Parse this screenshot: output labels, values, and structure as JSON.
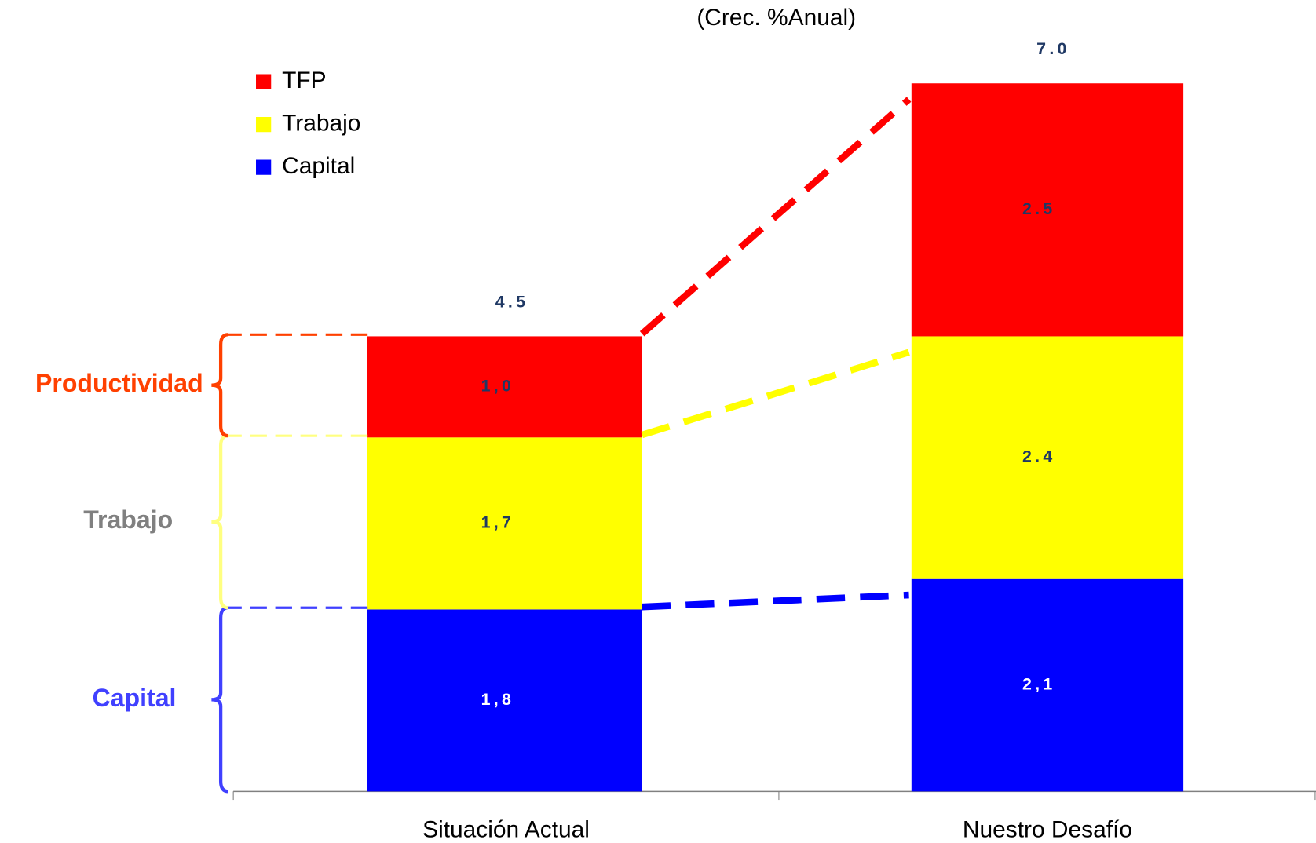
{
  "chart_data": {
    "type": "stacked_bar",
    "subtitle": "(Crec. %Anual)",
    "categories": [
      "Situación Actual",
      "Nuestro Desafío"
    ],
    "series": [
      {
        "name": "Capital",
        "color": "#0000ff",
        "label_color": "#ffffff",
        "values": [
          1.8,
          2.1
        ],
        "value_labels": [
          "1,8",
          "2,1"
        ]
      },
      {
        "name": "Trabajo",
        "color": "#ffff00",
        "label_color": "#1f3864",
        "values": [
          1.7,
          2.4
        ],
        "value_labels": [
          "1,7",
          "2.4"
        ]
      },
      {
        "name": "TFP",
        "color": "#ff0000",
        "label_color": "#1f3864",
        "values": [
          1.0,
          2.5
        ],
        "value_labels": [
          "1,0",
          "2.5"
        ]
      }
    ],
    "totals": [
      4.5,
      7.0
    ],
    "total_labels": [
      "4.5",
      "7.0"
    ],
    "annotations": [
      {
        "text": "Capital",
        "color": "#4040ff",
        "brace_color": "#4040ff"
      },
      {
        "text": "Trabajo",
        "color": "#808080",
        "brace_color": "#ffff80"
      },
      {
        "text": "Productividad",
        "color": "#ff4000",
        "brace_color": "#ff4000"
      }
    ],
    "connector_colors": [
      "#0000ff",
      "#ffff00",
      "#ff0000"
    ],
    "ylim": [
      0,
      7
    ]
  }
}
